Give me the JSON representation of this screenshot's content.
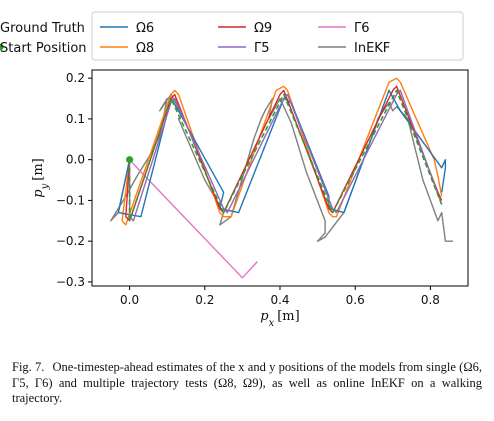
{
  "chart_data": {
    "type": "line",
    "xlabel": "p_x [m]",
    "ylabel": "p_y [m]",
    "xlim": [
      -0.1,
      0.9
    ],
    "ylim": [
      -0.31,
      0.22
    ],
    "x_ticks": [
      0.0,
      0.2,
      0.4,
      0.6,
      0.8
    ],
    "x_tick_labels": [
      "0.0",
      "0.2",
      "0.4",
      "0.6",
      "0.8"
    ],
    "y_ticks": [
      0.2,
      0.1,
      0.0,
      -0.1,
      -0.2,
      -0.3
    ],
    "y_tick_labels": [
      "0.2",
      "0.1",
      "0.0",
      "−0.1",
      "−0.2",
      "−0.3"
    ],
    "grid": false,
    "legend_position": "top",
    "series": [
      {
        "name": "Ω6",
        "color": "#1f77b4",
        "style": "solid",
        "x": [
          0.0,
          -0.03,
          0.03,
          0.11,
          0.13,
          0.25,
          0.24,
          0.29,
          0.41,
          0.43,
          0.53,
          0.53,
          0.57,
          0.69,
          0.72,
          0.83,
          0.84,
          0.84,
          0.83
        ],
        "y": [
          0.0,
          -0.13,
          -0.14,
          0.15,
          0.12,
          -0.08,
          -0.12,
          -0.13,
          0.15,
          0.14,
          -0.09,
          -0.12,
          -0.13,
          0.17,
          0.12,
          -0.02,
          0.0,
          -0.02,
          -0.08
        ]
      },
      {
        "name": "Ω8",
        "color": "#ff7f0e",
        "style": "solid",
        "x": [
          0.0,
          -0.02,
          -0.01,
          0.11,
          0.12,
          0.13,
          0.24,
          0.25,
          0.27,
          0.39,
          0.41,
          0.42,
          0.53,
          0.54,
          0.55,
          0.69,
          0.71,
          0.72,
          0.81,
          0.82,
          0.83
        ],
        "y": [
          0.0,
          -0.15,
          -0.16,
          0.16,
          0.17,
          0.16,
          -0.13,
          -0.14,
          -0.14,
          0.17,
          0.18,
          0.17,
          -0.13,
          -0.14,
          -0.14,
          0.19,
          0.2,
          0.19,
          0.0,
          -0.04,
          -0.09
        ]
      },
      {
        "name": "Ω9",
        "color": "#d62728",
        "style": "solid",
        "x": [
          0.0,
          -0.01,
          0.0,
          0.11,
          0.12,
          0.24,
          0.25,
          0.4,
          0.41,
          0.53,
          0.54,
          0.7,
          0.71,
          0.82,
          0.83
        ],
        "y": [
          0.0,
          -0.14,
          -0.15,
          0.15,
          0.16,
          -0.12,
          -0.13,
          0.16,
          0.17,
          -0.12,
          -0.13,
          0.17,
          0.18,
          -0.08,
          -0.1
        ]
      },
      {
        "name": "Γ5",
        "color": "#9467bd",
        "style": "solid",
        "x": [
          0.0,
          0.0,
          0.01,
          0.11,
          0.12,
          0.25,
          0.26,
          0.41,
          0.42,
          0.54,
          0.55,
          0.71,
          0.72,
          0.83
        ],
        "y": [
          0.0,
          -0.14,
          -0.15,
          0.14,
          0.15,
          -0.12,
          -0.13,
          0.15,
          0.16,
          -0.12,
          -0.13,
          0.16,
          0.17,
          -0.11
        ]
      },
      {
        "name": "Γ6",
        "color": "#e377c2",
        "style": "solid",
        "x": [
          0.0,
          0.03,
          0.3,
          0.33,
          0.34
        ],
        "y": [
          0.0,
          -0.03,
          -0.29,
          -0.26,
          -0.25
        ]
      },
      {
        "name": "InEKF",
        "color": "#7f7f7f",
        "style": "solid",
        "x": [
          0.0,
          -0.03,
          -0.05,
          -0.01,
          0.02,
          0.06,
          0.08,
          0.1,
          0.08,
          0.11,
          0.14,
          0.13,
          0.2,
          0.25,
          0.24,
          0.27,
          0.33,
          0.35,
          0.36,
          0.38,
          0.37,
          0.4,
          0.43,
          0.47,
          0.52,
          0.52,
          0.5,
          0.52,
          0.57,
          0.63,
          0.65,
          0.66,
          0.69,
          0.7,
          0.71,
          0.74,
          0.78,
          0.82,
          0.83,
          0.84,
          0.86
        ],
        "y": [
          0.0,
          -0.13,
          -0.15,
          -0.09,
          -0.04,
          0.02,
          0.06,
          0.15,
          0.12,
          0.16,
          0.11,
          0.1,
          -0.05,
          -0.13,
          -0.16,
          -0.14,
          0.05,
          0.1,
          0.12,
          0.15,
          0.1,
          0.15,
          0.09,
          -0.03,
          -0.15,
          -0.18,
          -0.2,
          -0.19,
          -0.13,
          0.02,
          0.07,
          0.1,
          0.14,
          0.12,
          0.13,
          0.1,
          -0.05,
          -0.15,
          -0.13,
          -0.2,
          -0.2
        ]
      },
      {
        "name": "Ground Truth",
        "color": "#2ca02c",
        "style": "dashed",
        "x": [
          0.0,
          0.0,
          0.11,
          0.25,
          0.41,
          0.54,
          0.71,
          0.83
        ],
        "y": [
          0.0,
          -0.15,
          0.15,
          -0.13,
          0.16,
          -0.13,
          0.17,
          -0.11
        ]
      },
      {
        "name": "Start Position",
        "color": "#2ca02c",
        "style": "marker",
        "x": [
          0.0
        ],
        "y": [
          0.0
        ]
      }
    ]
  },
  "caption": {
    "label": "Fig. 7.",
    "text": "One-timestep-ahead estimates of the x and y positions of the models from single (Ω6, Γ5, Γ6) and multiple trajectory tests (Ω8, Ω9), as well as online InEKF on a walking trajectory."
  }
}
